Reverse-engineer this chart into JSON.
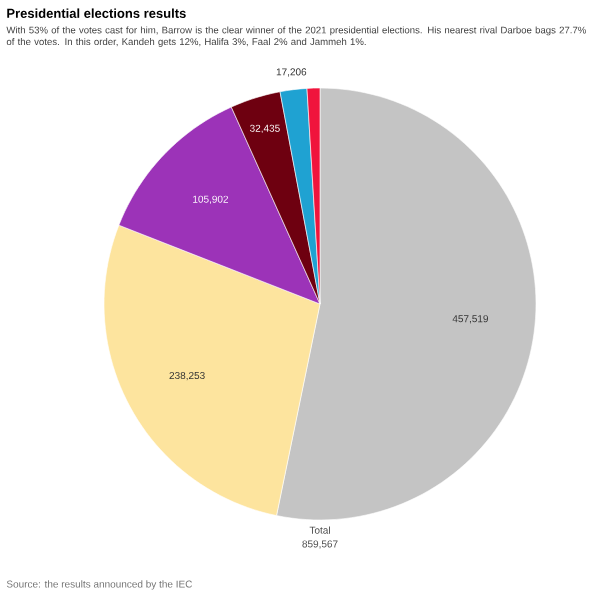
{
  "chart_data": {
    "type": "pie",
    "title": "Presidential elections results",
    "subtitle": "With 53% of the votes cast for him, Barrow is the clear winner of the 2021 presidential elections. His nearest rival Darboe bags 27.7% of the votes. In this order, Kandeh gets 12%, Halifa 3%, Faal 2% and Jammeh 1%.",
    "categories": [
      null,
      null,
      null,
      null,
      null,
      null
    ],
    "values": [
      457519,
      238253,
      105902,
      32435,
      17206,
      8252
    ],
    "colors": [
      "#c4c4c4",
      "#fde49e",
      "#9c33b8",
      "#6e0010",
      "#1fa2d2",
      "#f0143c"
    ],
    "value_labels": [
      "457,519",
      "238,253",
      "105,902",
      "32,435",
      "17,206",
      null
    ],
    "annotations": [
      "Total",
      "859,567",
      "Source: the results announced by the IEC"
    ]
  }
}
